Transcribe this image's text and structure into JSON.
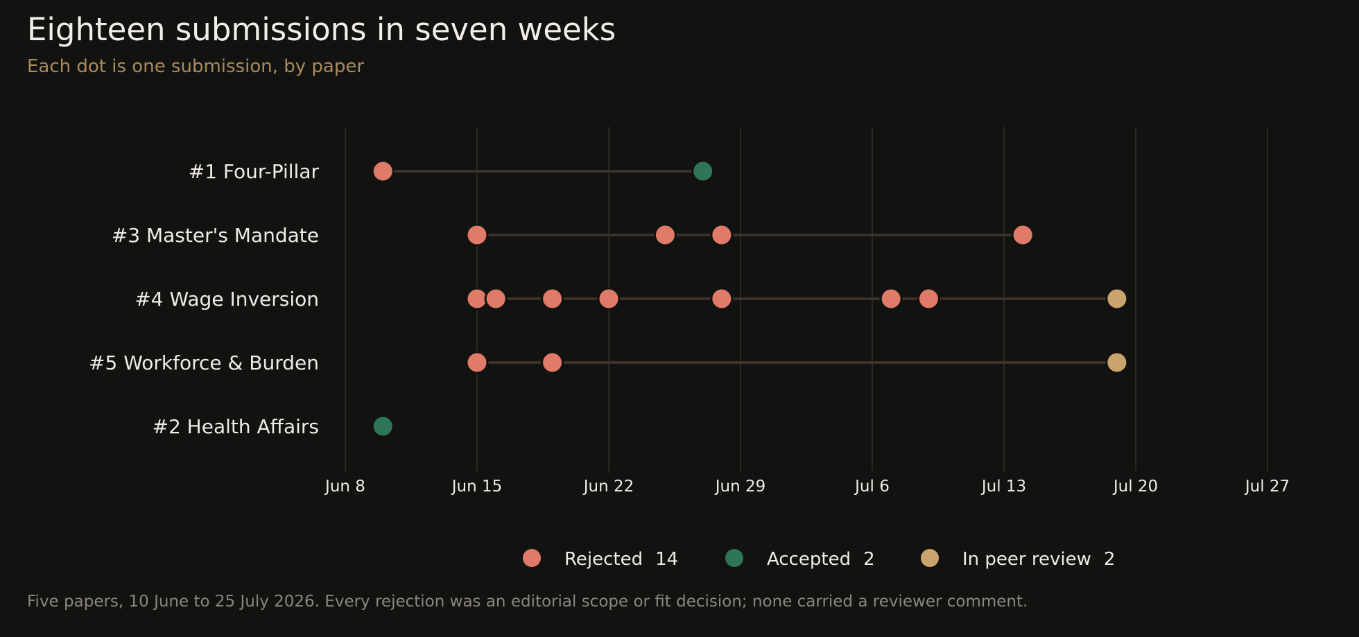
{
  "header": {
    "title": "Eighteen submissions in seven weeks",
    "subtitle": "Each dot is one submission, by paper"
  },
  "footnote": "Five papers, 10 June to 25 July 2026. Every rejection was an editorial scope or fit decision; none carried a reviewer comment.",
  "chart_data": {
    "type": "scatter",
    "x_axis": {
      "type": "date",
      "range": [
        "2026-06-08",
        "2026-07-30"
      ],
      "ticks": [
        {
          "date": "2026-06-08",
          "label": "Jun 8"
        },
        {
          "date": "2026-06-15",
          "label": "Jun 15"
        },
        {
          "date": "2026-06-22",
          "label": "Jun 22"
        },
        {
          "date": "2026-06-29",
          "label": "Jun 29"
        },
        {
          "date": "2026-07-06",
          "label": "Jul 6"
        },
        {
          "date": "2026-07-13",
          "label": "Jul 13"
        },
        {
          "date": "2026-07-20",
          "label": "Jul 20"
        },
        {
          "date": "2026-07-27",
          "label": "Jul 27"
        }
      ],
      "grid": true
    },
    "legend": {
      "placement": "bottom",
      "items": [
        {
          "status": "rejected",
          "label": "Rejected",
          "count": "14"
        },
        {
          "status": "accepted",
          "label": "Accepted",
          "count": "2"
        },
        {
          "status": "review",
          "label": "In peer review",
          "count": "2"
        }
      ]
    },
    "colors": {
      "rejected": "#e07a69",
      "accepted": "#2f7559",
      "review": "#c9a56d",
      "connector": "#3b3329",
      "grid": "#2a2922"
    },
    "papers": [
      {
        "label": "#1 Four-Pillar",
        "submissions": [
          {
            "date": "2026-06-10",
            "status": "rejected"
          },
          {
            "date": "2026-06-27",
            "status": "accepted"
          }
        ]
      },
      {
        "label": "#3 Master's Mandate",
        "submissions": [
          {
            "date": "2026-06-15",
            "status": "rejected"
          },
          {
            "date": "2026-06-25",
            "status": "rejected"
          },
          {
            "date": "2026-06-28",
            "status": "rejected"
          },
          {
            "date": "2026-07-14",
            "status": "rejected"
          }
        ]
      },
      {
        "label": "#4 Wage Inversion",
        "submissions": [
          {
            "date": "2026-06-15",
            "status": "rejected"
          },
          {
            "date": "2026-06-16",
            "status": "rejected"
          },
          {
            "date": "2026-06-19",
            "status": "rejected"
          },
          {
            "date": "2026-06-22",
            "status": "rejected"
          },
          {
            "date": "2026-06-28",
            "status": "rejected"
          },
          {
            "date": "2026-07-07",
            "status": "rejected"
          },
          {
            "date": "2026-07-09",
            "status": "rejected"
          },
          {
            "date": "2026-07-19",
            "status": "review"
          }
        ]
      },
      {
        "label": "#5 Workforce & Burden",
        "submissions": [
          {
            "date": "2026-06-15",
            "status": "rejected"
          },
          {
            "date": "2026-06-19",
            "status": "rejected"
          },
          {
            "date": "2026-07-19",
            "status": "review"
          }
        ]
      },
      {
        "label": "#2 Health Affairs",
        "submissions": [
          {
            "date": "2026-06-10",
            "status": "accepted"
          }
        ]
      }
    ]
  }
}
